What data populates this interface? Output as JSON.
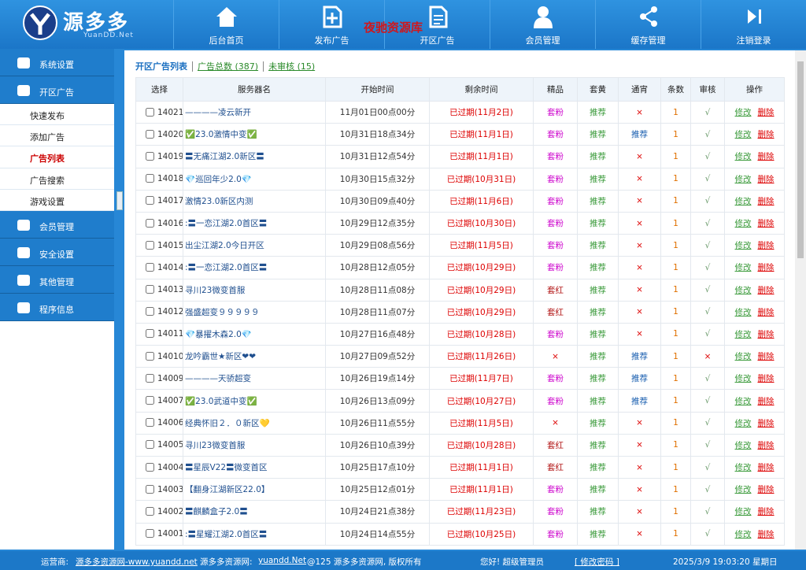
{
  "header": {
    "logo": "源多多",
    "logo_sub": "YuanDD.Net",
    "watermark": "夜驰资源库",
    "nav": [
      "后台首页",
      "发布广告",
      "开区广告",
      "会员管理",
      "缓存管理",
      "注销登录"
    ]
  },
  "sidebar": {
    "menu": [
      {
        "label": "系统设置"
      },
      {
        "label": "开区广告",
        "children": [
          "快速发布",
          "添加广告",
          "广告列表",
          "广告搜索",
          "游戏设置"
        ]
      },
      {
        "label": "会员管理"
      },
      {
        "label": "安全设置"
      },
      {
        "label": "其他管理"
      },
      {
        "label": "程序信息"
      }
    ],
    "active": "广告列表"
  },
  "tabs": {
    "current": "开区广告列表",
    "total": "广告总数 (387)",
    "pending": "未审核 (15)"
  },
  "table": {
    "columns": [
      "选择",
      "服务器名",
      "开始时间",
      "剩余时间",
      "精品",
      "套黄",
      "通宵",
      "条数",
      "审核",
      "操作"
    ],
    "actions": [
      "修改",
      "删除"
    ],
    "rows": [
      {
        "id": "14021",
        "name": "————凌云新开",
        "start": "11月01日00点00分",
        "remain": "已过期(11月2日)",
        "jp": "套粉",
        "th": "推荐",
        "tx": "×",
        "num": "1",
        "sh": "√"
      },
      {
        "id": "14020",
        "name": "✅23.0激情中变✅",
        "start": "10月31日18点34分",
        "remain": "已过期(11月1日)",
        "jp": "套粉",
        "th": "推荐",
        "tx": "推荐",
        "num": "1",
        "sh": "√"
      },
      {
        "id": "14019",
        "name": "〓无痛江湖2.0新区〓",
        "start": "10月31日12点54分",
        "remain": "已过期(11月1日)",
        "jp": "套粉",
        "th": "推荐",
        "tx": "×",
        "num": "1",
        "sh": "√"
      },
      {
        "id": "14018",
        "name": "💎巡回年少2.0💎",
        "start": "10月30日15点32分",
        "remain": "已过期(10月31日)",
        "jp": "套粉",
        "th": "推荐",
        "tx": "×",
        "num": "1",
        "sh": "√"
      },
      {
        "id": "14017",
        "name": "激情23.0新区内测",
        "start": "10月30日09点40分",
        "remain": "已过期(11月6日)",
        "jp": "套粉",
        "th": "推荐",
        "tx": "×",
        "num": "1",
        "sh": "√"
      },
      {
        "id": "14016",
        "name": ":〓一恋江湖2.0首区〓",
        "start": "10月29日12点35分",
        "remain": "已过期(10月30日)",
        "jp": "套粉",
        "th": "推荐",
        "tx": "×",
        "num": "1",
        "sh": "√"
      },
      {
        "id": "14015",
        "name": "出尘江湖2.0今日开区",
        "start": "10月29日08点56分",
        "remain": "已过期(11月5日)",
        "jp": "套粉",
        "th": "推荐",
        "tx": "×",
        "num": "1",
        "sh": "√"
      },
      {
        "id": "14014",
        "name": ":〓一恋江湖2.0首区〓",
        "start": "10月28日12点05分",
        "remain": "已过期(10月29日)",
        "jp": "套粉",
        "th": "推荐",
        "tx": "×",
        "num": "1",
        "sh": "√"
      },
      {
        "id": "14013",
        "name": "寻川23微变首服",
        "start": "10月28日11点08分",
        "remain": "已过期(10月29日)",
        "jp": "套红",
        "th": "推荐",
        "tx": "×",
        "num": "1",
        "sh": "√"
      },
      {
        "id": "14012",
        "name": "强盛超变９９９９９",
        "start": "10月28日11点07分",
        "remain": "已过期(10月29日)",
        "jp": "套红",
        "th": "推荐",
        "tx": "×",
        "num": "1",
        "sh": "√"
      },
      {
        "id": "14011",
        "name": "💎暴擢木森2.0💎",
        "start": "10月27日16点48分",
        "remain": "已过期(10月28日)",
        "jp": "套粉",
        "th": "推荐",
        "tx": "×",
        "num": "1",
        "sh": "√"
      },
      {
        "id": "14010",
        "name": "龙吟霸世★新区❤❤",
        "start": "10月27日09点52分",
        "remain": "已过期(11月26日)",
        "jp": "×",
        "th": "推荐",
        "tx": "推荐",
        "num": "1",
        "sh": "×"
      },
      {
        "id": "14009",
        "name": "————天骄超变",
        "start": "10月26日19点14分",
        "remain": "已过期(11月7日)",
        "jp": "套粉",
        "th": "推荐",
        "tx": "推荐",
        "num": "1",
        "sh": "√"
      },
      {
        "id": "14007",
        "name": "✅23.0武道中变✅",
        "start": "10月26日13点09分",
        "remain": "已过期(10月27日)",
        "jp": "套粉",
        "th": "推荐",
        "tx": "推荐",
        "num": "1",
        "sh": "√"
      },
      {
        "id": "14006",
        "name": "经典怀旧２．０新区💛",
        "start": "10月26日11点55分",
        "remain": "已过期(11月5日)",
        "jp": "×",
        "th": "推荐",
        "tx": "×",
        "num": "1",
        "sh": "√"
      },
      {
        "id": "14005",
        "name": "寻川23微变首服",
        "start": "10月26日10点39分",
        "remain": "已过期(10月28日)",
        "jp": "套红",
        "th": "推荐",
        "tx": "×",
        "num": "1",
        "sh": "√"
      },
      {
        "id": "14004",
        "name": "〓星辰V22〓微变首区",
        "start": "10月25日17点10分",
        "remain": "已过期(11月1日)",
        "jp": "套红",
        "th": "推荐",
        "tx": "×",
        "num": "1",
        "sh": "√"
      },
      {
        "id": "14003",
        "name": "【翻身江湖新区22.0】",
        "start": "10月25日12点01分",
        "remain": "已过期(11月1日)",
        "jp": "套粉",
        "th": "推荐",
        "tx": "×",
        "num": "1",
        "sh": "√"
      },
      {
        "id": "14002",
        "name": "〓麒麟盒子2.0〓",
        "start": "10月24日21点38分",
        "remain": "已过期(11月23日)",
        "jp": "套粉",
        "th": "推荐",
        "tx": "×",
        "num": "1",
        "sh": "√"
      },
      {
        "id": "14001",
        "name": ":〓星耀江湖2.0首区〓",
        "start": "10月24日14点55分",
        "remain": "已过期(10月25日)",
        "jp": "套粉",
        "th": "推荐",
        "tx": "×",
        "num": "1",
        "sh": "√"
      }
    ]
  },
  "footer": {
    "operator_label": "运营商:",
    "operator_link": "源多多资源网-www.yuandd.net",
    "site_label": "源多多资源网:",
    "site_link": "yuandd.Net",
    "copyright": "@125 源多多资源网, 版权所有",
    "greeting": "您好! 超级管理员",
    "password": "[ 修改密码 ]",
    "datetime": "2025/3/9 19:03:20 星期日"
  }
}
